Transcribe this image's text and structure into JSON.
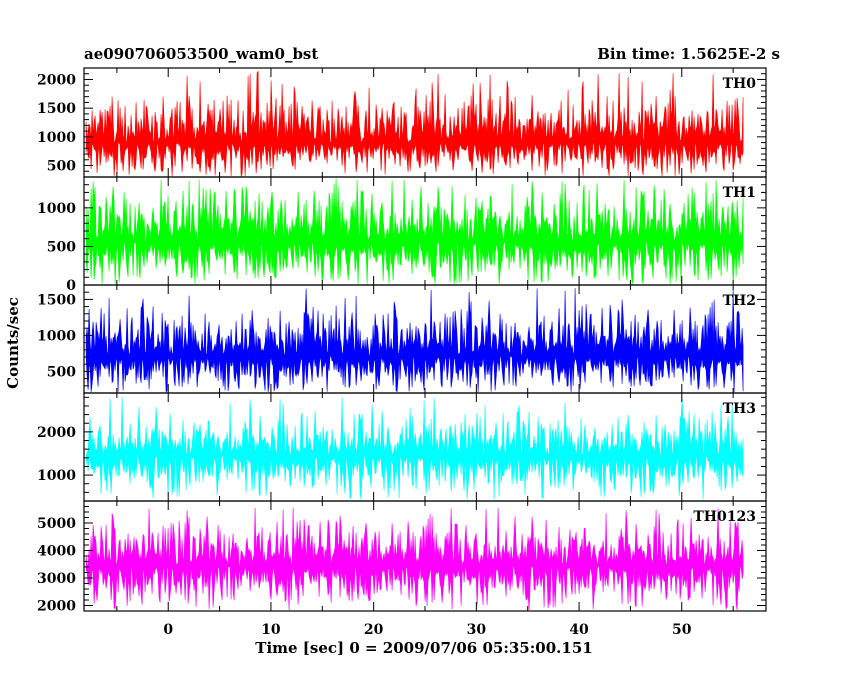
{
  "chart_data": {
    "type": "line",
    "title_left": "ae090706053500_wam0_bst",
    "title_right": "Bin time: 1.5625E-2 s",
    "xlabel": "Time [sec] 0 = 2009/07/06 05:35:00.151",
    "ylabel": "Counts/sec",
    "xlim": [
      -8.2,
      58.2
    ],
    "x_data_range": [
      -8,
      56
    ],
    "xticks": [
      0,
      10,
      20,
      30,
      40,
      50
    ],
    "panels": [
      {
        "name": "TH0",
        "color": "#ff0000",
        "ylim": [
          300,
          2200
        ],
        "yticks": [
          500,
          1000,
          1500,
          2000
        ],
        "mean": 900,
        "low": 480,
        "high": 1550,
        "spike_max": 2150
      },
      {
        "name": "TH1",
        "color": "#00ff00",
        "ylim": [
          0,
          1400
        ],
        "yticks": [
          0,
          500,
          1000
        ],
        "mean": 560,
        "low": 130,
        "high": 1150,
        "spike_max": 1380
      },
      {
        "name": "TH2",
        "color": "#0000ff",
        "ylim": [
          200,
          1700
        ],
        "yticks": [
          500,
          1000,
          1500
        ],
        "mean": 720,
        "low": 330,
        "high": 1250,
        "spike_max": 1680
      },
      {
        "name": "TH3",
        "color": "#00ffff",
        "ylim": [
          400,
          2900
        ],
        "yticks": [
          1000,
          2000
        ],
        "mean": 1450,
        "low": 780,
        "high": 2250,
        "spike_max": 2850
      },
      {
        "name": "TH0123",
        "color": "#ff00ff",
        "ylim": [
          1800,
          5800
        ],
        "yticks": [
          2000,
          3000,
          4000,
          5000
        ],
        "mean": 3450,
        "low": 2300,
        "high": 4800,
        "spike_max": 5600
      }
    ]
  }
}
